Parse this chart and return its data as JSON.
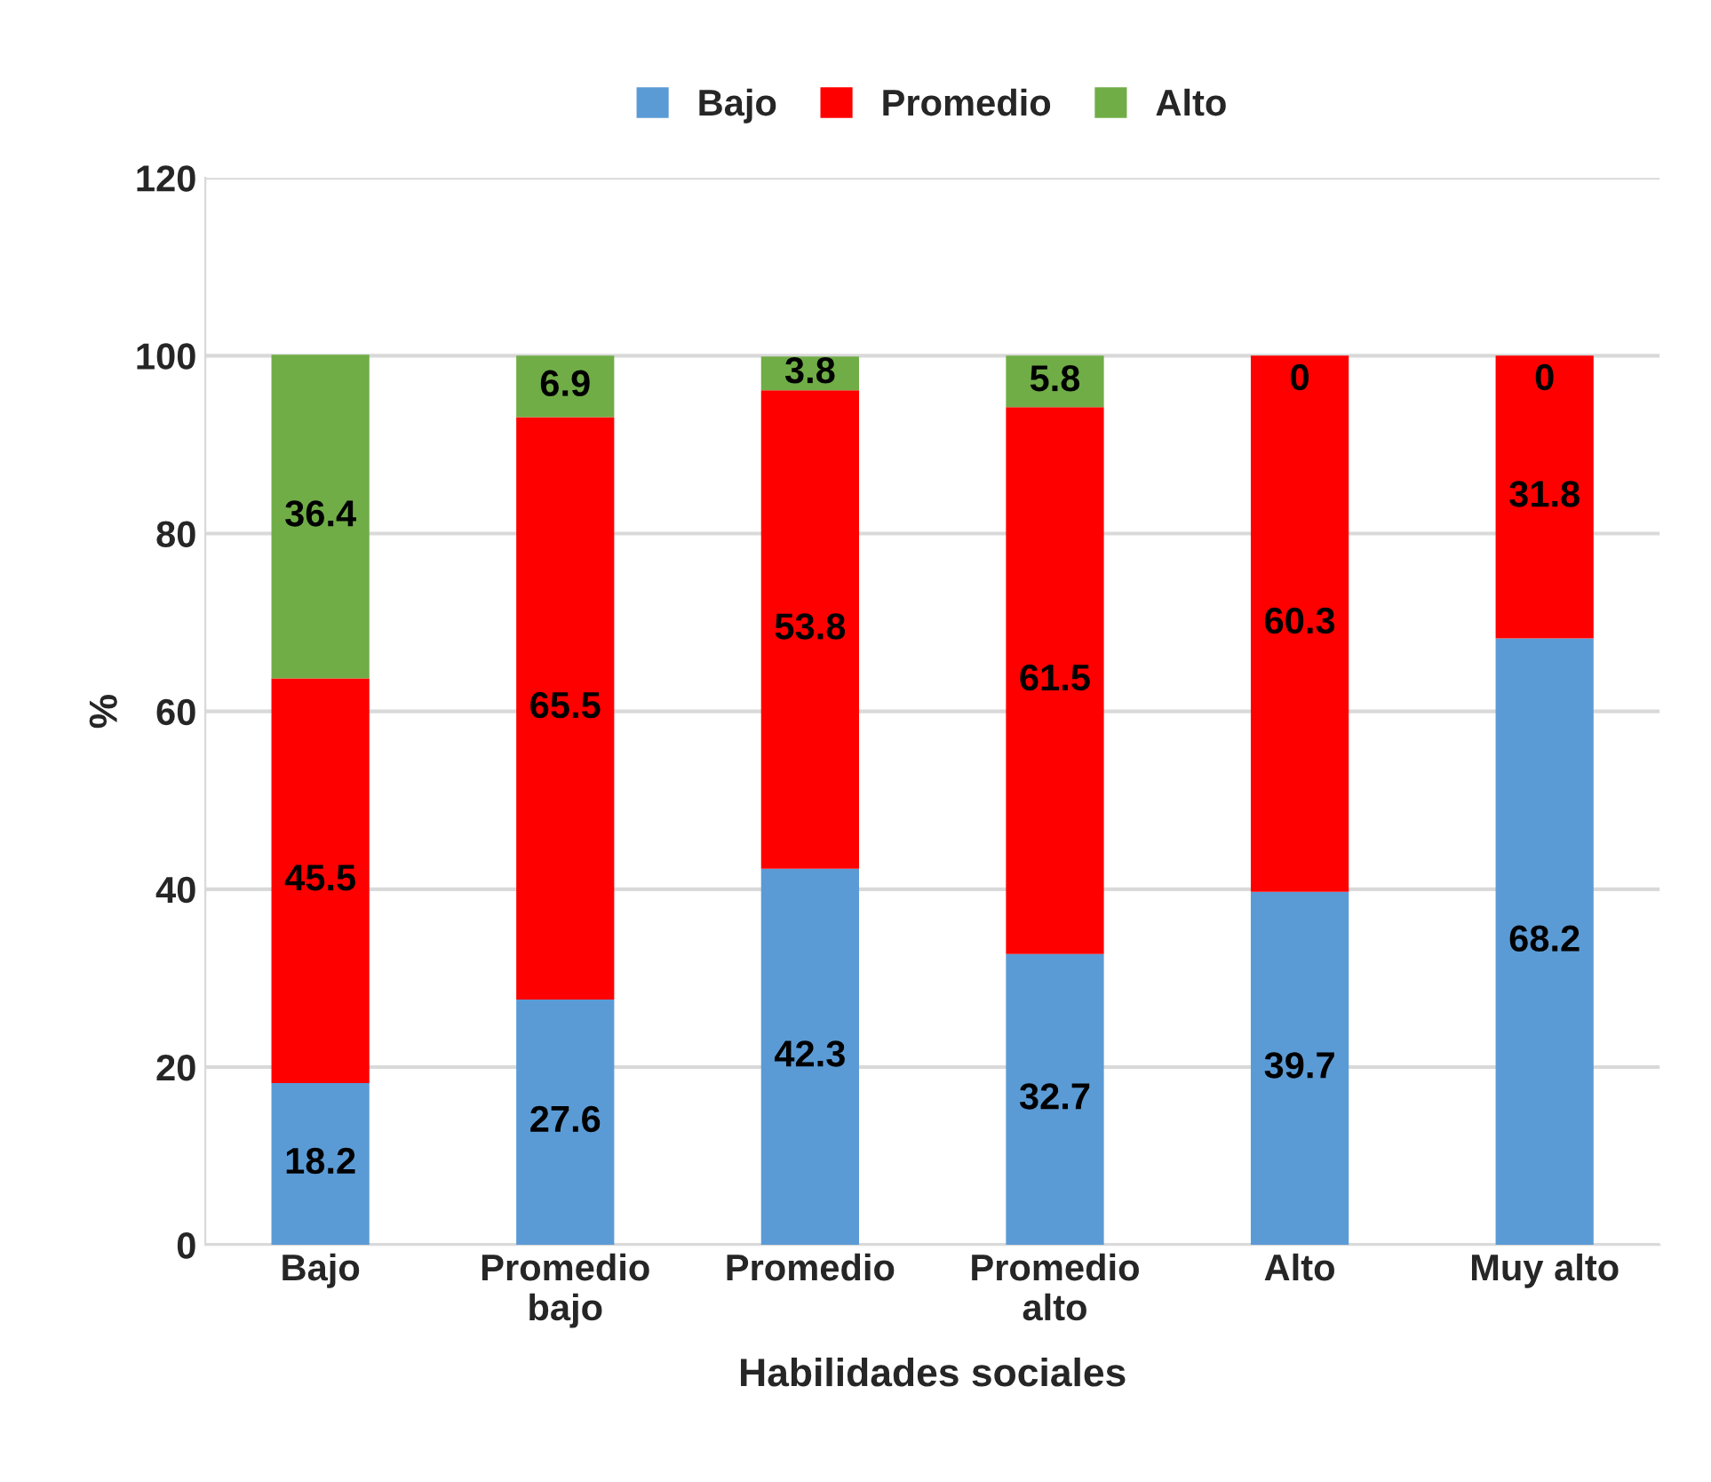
{
  "chart_data": {
    "type": "bar",
    "stacked": true,
    "xlabel": "Habilidades sociales",
    "ylabel": "%",
    "categories": [
      "Bajo",
      "Promedio\nbajo",
      "Promedio",
      "Promedio\nalto",
      "Alto",
      "Muy alto"
    ],
    "series": [
      {
        "name": "Bajo",
        "color": "#5b9bd5",
        "values": [
          18.2,
          27.6,
          42.3,
          32.7,
          39.7,
          68.2
        ]
      },
      {
        "name": "Promedio",
        "color": "#ff0000",
        "values": [
          45.5,
          65.5,
          53.8,
          61.5,
          60.3,
          31.8
        ]
      },
      {
        "name": "Alto",
        "color": "#70ad47",
        "values": [
          36.4,
          6.9,
          3.8,
          5.8,
          0,
          0
        ]
      }
    ],
    "ylim": [
      0,
      120
    ],
    "yticks": [
      0,
      20,
      40,
      60,
      80,
      100,
      120
    ],
    "grid": "y",
    "legend": "top",
    "data_labels": true
  }
}
